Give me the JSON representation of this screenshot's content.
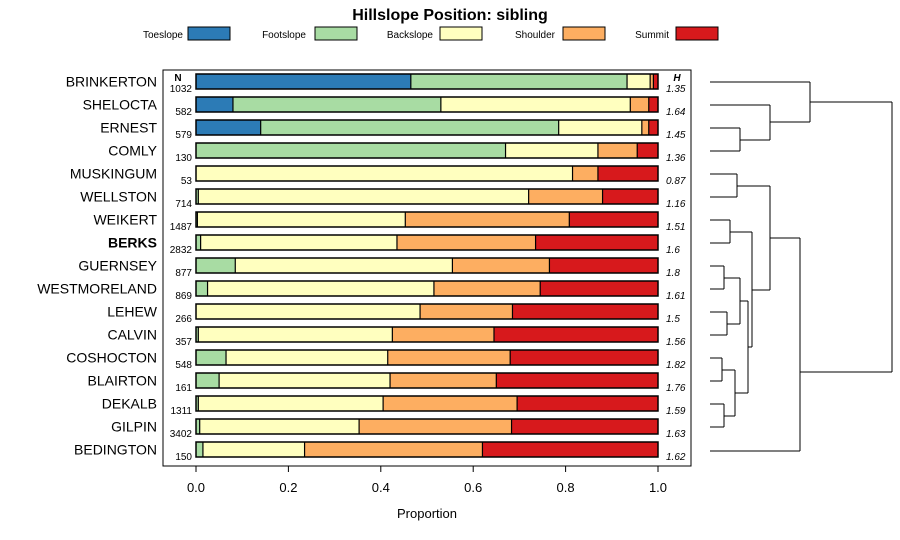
{
  "chart_data": {
    "type": "bar",
    "orientation": "horizontal",
    "stacked": true,
    "title": "Hillslope Position: sibling",
    "xlabel": "Proportion",
    "ylabel": "",
    "xlim": [
      0,
      1
    ],
    "x_ticks": [
      "0.0",
      "0.2",
      "0.4",
      "0.6",
      "0.8",
      "1.0"
    ],
    "legend": [
      {
        "name": "Toeslope",
        "color": "#2c7bb6"
      },
      {
        "name": "Footslope",
        "color": "#a8dca3"
      },
      {
        "name": "Backslope",
        "color": "#ffffbf"
      },
      {
        "name": "Shoulder",
        "color": "#fdae61"
      },
      {
        "name": "Summit",
        "color": "#d7191c"
      }
    ],
    "n_header": "N",
    "h_header": "H",
    "highlight": "BERKS",
    "rows": [
      {
        "label": "BRINKERTON",
        "n": "1032",
        "h": "1.35",
        "values": [
          0.465,
          0.468,
          0.05,
          0.007,
          0.01
        ]
      },
      {
        "label": "SHELOCTA",
        "n": "582",
        "h": "1.64",
        "values": [
          0.08,
          0.45,
          0.41,
          0.04,
          0.02
        ]
      },
      {
        "label": "ERNEST",
        "n": "579",
        "h": "1.45",
        "values": [
          0.14,
          0.645,
          0.18,
          0.015,
          0.02
        ]
      },
      {
        "label": "COMLY",
        "n": "130",
        "h": "1.36",
        "values": [
          0.0,
          0.67,
          0.2,
          0.085,
          0.045
        ]
      },
      {
        "label": "MUSKINGUM",
        "n": "53",
        "h": "0.87",
        "values": [
          0.0,
          0.0,
          0.815,
          0.055,
          0.13
        ]
      },
      {
        "label": "WELLSTON",
        "n": "714",
        "h": "1.16",
        "values": [
          0.0,
          0.005,
          0.715,
          0.16,
          0.12
        ]
      },
      {
        "label": "WEIKERT",
        "n": "1487",
        "h": "1.51",
        "values": [
          0.0,
          0.003,
          0.45,
          0.355,
          0.192
        ]
      },
      {
        "label": "BERKS",
        "n": "2832",
        "h": "1.6",
        "values": [
          0.0,
          0.01,
          0.425,
          0.3,
          0.265
        ]
      },
      {
        "label": "GUERNSEY",
        "n": "877",
        "h": "1.8",
        "values": [
          0.0,
          0.085,
          0.47,
          0.21,
          0.235
        ]
      },
      {
        "label": "WESTMORELAND",
        "n": "869",
        "h": "1.61",
        "values": [
          0.0,
          0.025,
          0.49,
          0.23,
          0.255
        ]
      },
      {
        "label": "LEHEW",
        "n": "266",
        "h": "1.5",
        "values": [
          0.0,
          0.0,
          0.485,
          0.2,
          0.315
        ]
      },
      {
        "label": "CALVIN",
        "n": "357",
        "h": "1.56",
        "values": [
          0.0,
          0.005,
          0.42,
          0.22,
          0.355
        ]
      },
      {
        "label": "COSHOCTON",
        "n": "548",
        "h": "1.82",
        "values": [
          0.0,
          0.065,
          0.35,
          0.265,
          0.32
        ]
      },
      {
        "label": "BLAIRTON",
        "n": "161",
        "h": "1.76",
        "values": [
          0.0,
          0.05,
          0.37,
          0.23,
          0.35
        ]
      },
      {
        "label": "DEKALB",
        "n": "1311",
        "h": "1.59",
        "values": [
          0.0,
          0.005,
          0.4,
          0.29,
          0.305
        ]
      },
      {
        "label": "GILPIN",
        "n": "3402",
        "h": "1.63",
        "values": [
          0.0,
          0.008,
          0.345,
          0.33,
          0.317
        ]
      },
      {
        "label": "BEDINGTON",
        "n": "150",
        "h": "1.62",
        "values": [
          0.0,
          0.015,
          0.22,
          0.385,
          0.38
        ]
      }
    ]
  }
}
